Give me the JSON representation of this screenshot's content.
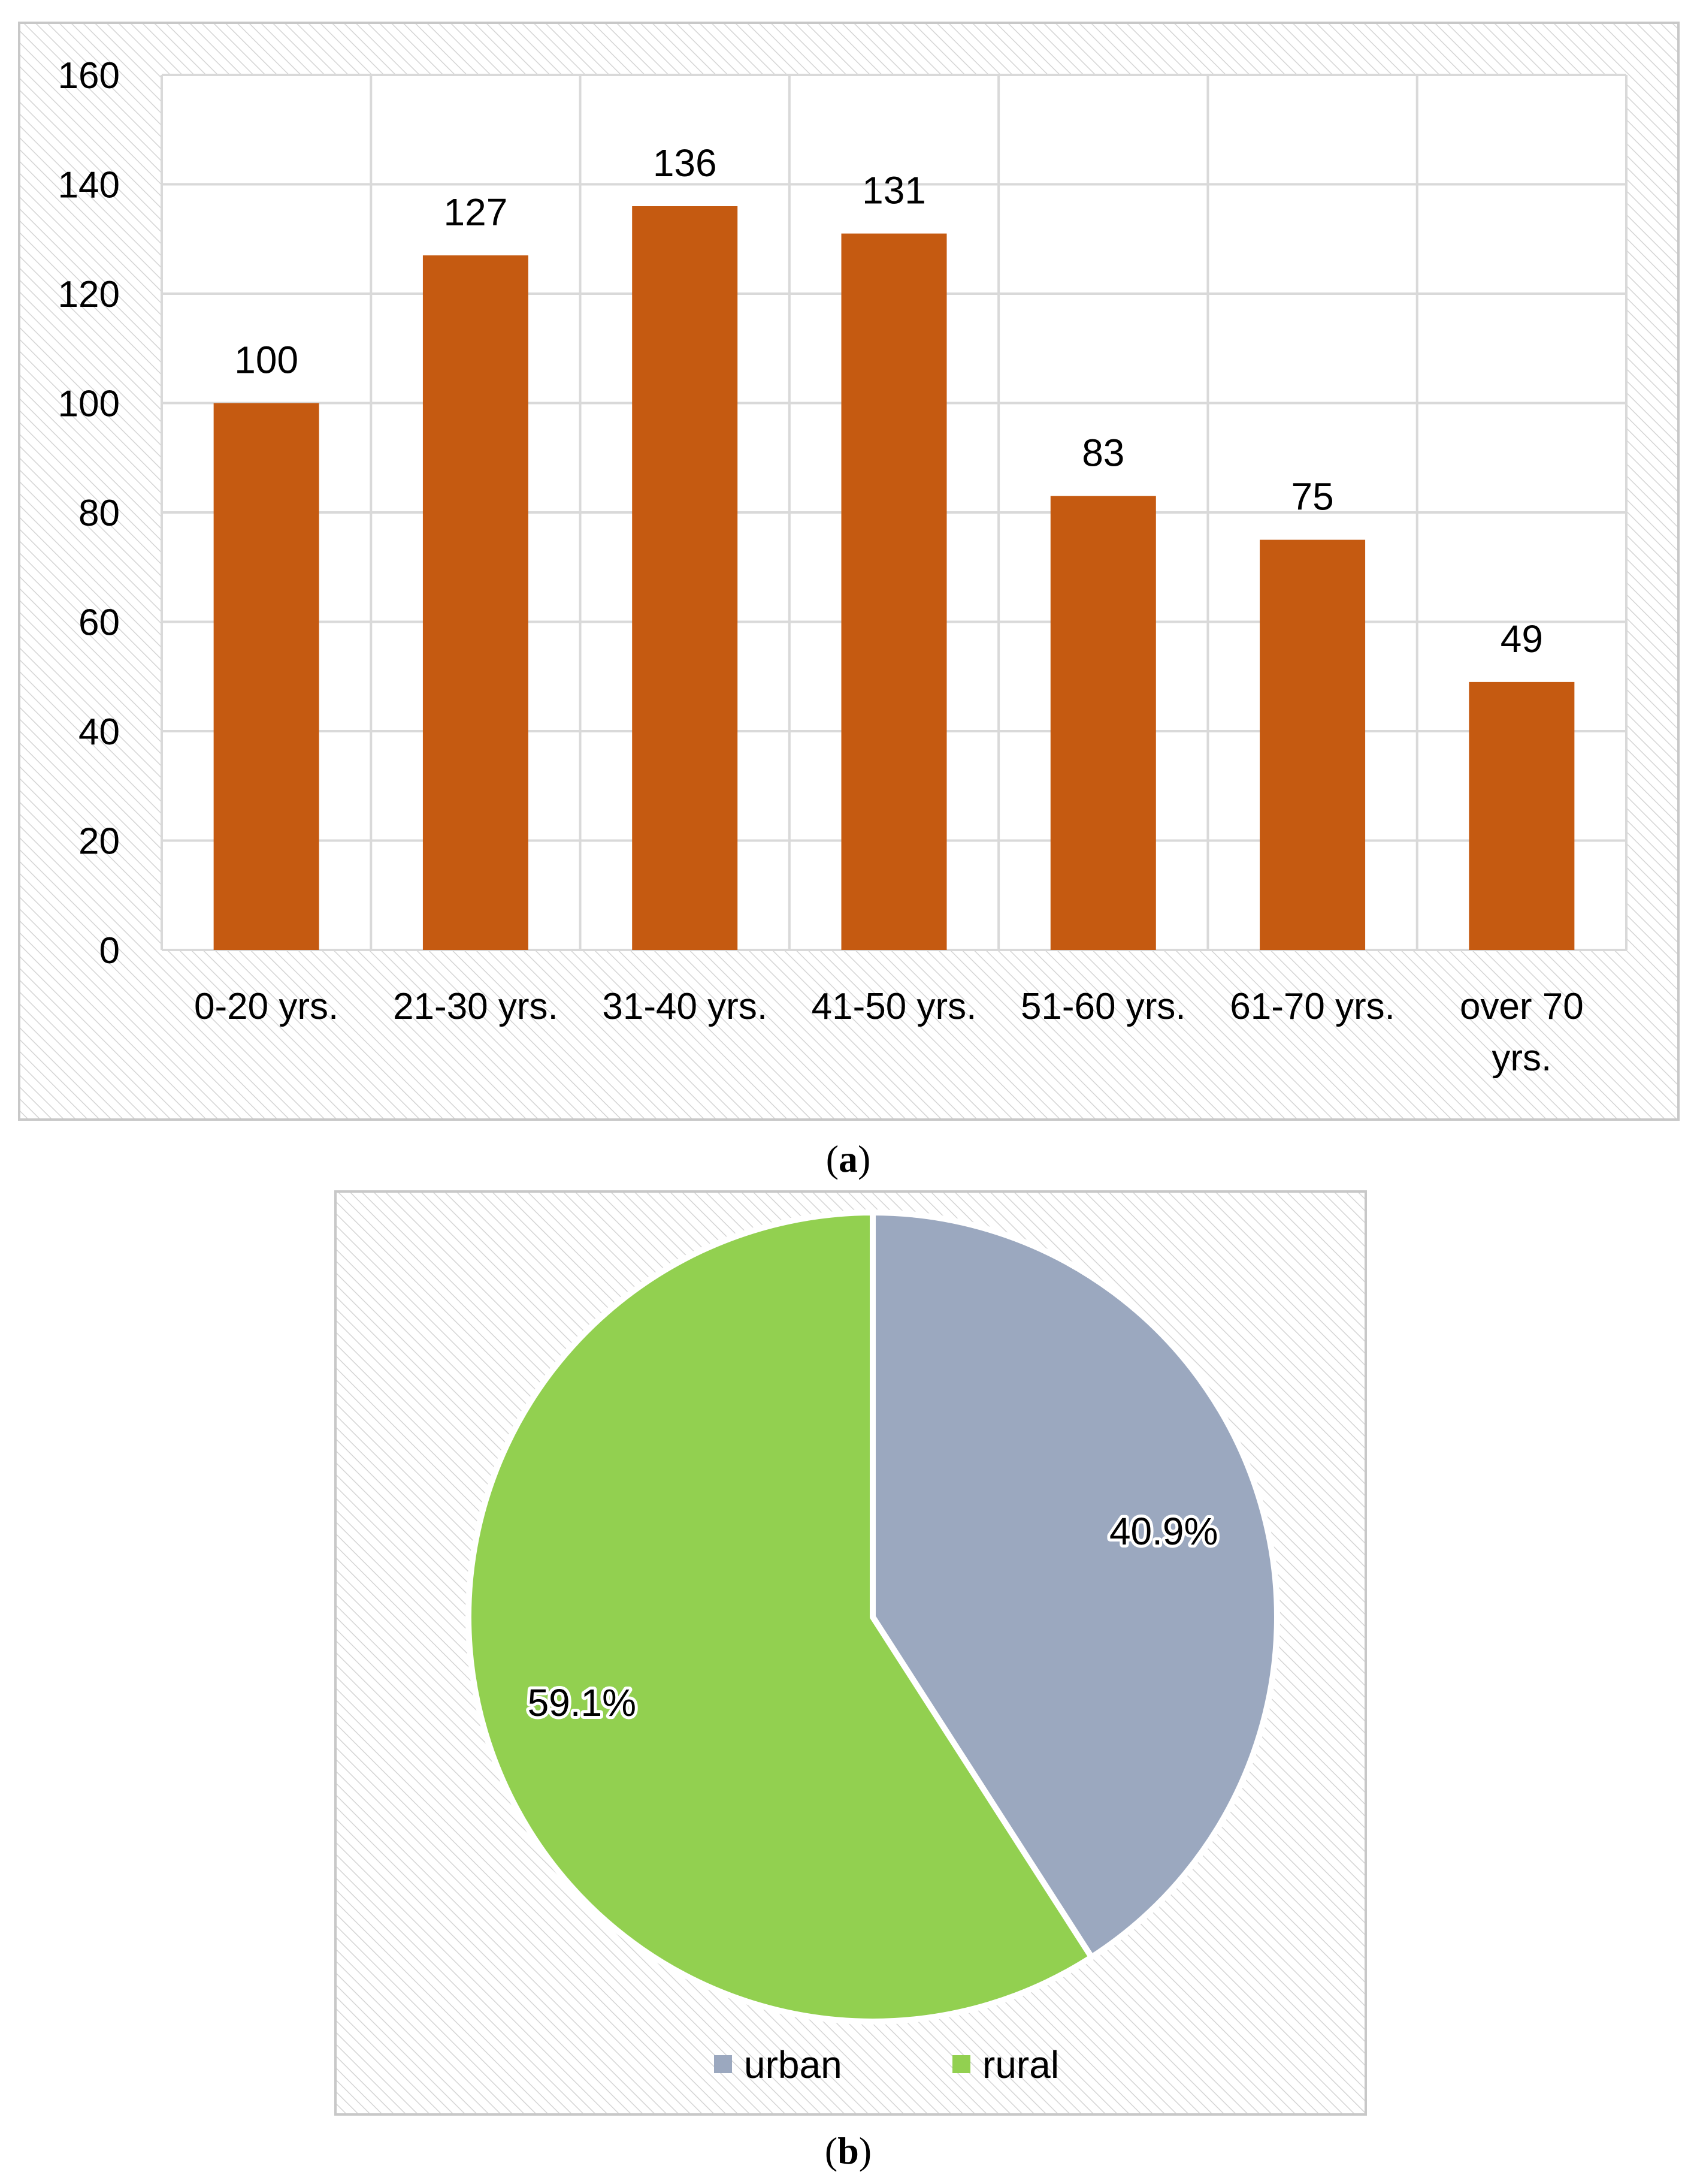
{
  "chart_data": [
    {
      "type": "bar",
      "categories": [
        "0-20 yrs.",
        "21-30 yrs.",
        "31-40 yrs.",
        "41-50 yrs.",
        "51-60 yrs.",
        "61-70 yrs.",
        "over 70 yrs."
      ],
      "values": [
        100,
        127,
        136,
        131,
        83,
        75,
        49
      ],
      "data_labels": [
        "100",
        "127",
        "136",
        "131",
        "83",
        "75",
        "49"
      ],
      "yticks": [
        "0",
        "20",
        "40",
        "60",
        "80",
        "100",
        "120",
        "140",
        "160"
      ],
      "ylim": [
        0,
        160
      ],
      "grid": true,
      "color": "#C55A11",
      "caption_open": "(",
      "caption_letter": "a",
      "caption_close": ")"
    },
    {
      "type": "pie",
      "slices": [
        {
          "name": "urban",
          "value": 40.9,
          "label": "40.9%",
          "color": "#9BA8BF"
        },
        {
          "name": "rural",
          "value": 59.1,
          "label": "59.1%",
          "color": "#92D050"
        }
      ],
      "legend_position": "bottom",
      "caption_open": "(",
      "caption_letter": "b",
      "caption_close": ")"
    }
  ]
}
